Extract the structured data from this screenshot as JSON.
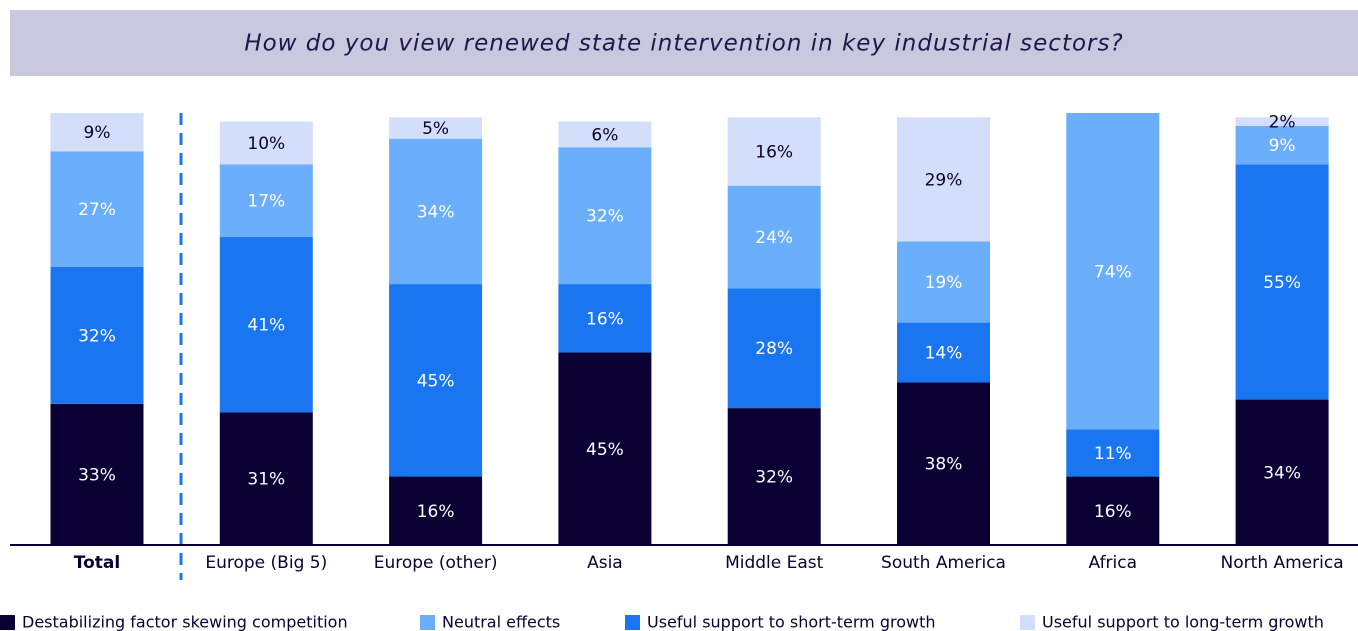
{
  "chart_data": {
    "type": "stacked_bar",
    "title": "How do you view renewed state intervention in key industrial sectors?",
    "categories": [
      "Total",
      "Europe (Big 5)",
      "Europe (other)",
      "Asia",
      "Middle East",
      "South America",
      "Africa",
      "North America"
    ],
    "series": [
      {
        "name": "Destabilizing factor skewing competition",
        "color": "#0b0033",
        "values": [
          33,
          31,
          16,
          45,
          32,
          38,
          16,
          34
        ],
        "value_labels": [
          "33%",
          "31%",
          "16%",
          "45%",
          "32%",
          "38%",
          "16%",
          "34%"
        ]
      },
      {
        "name": "Neutral effects",
        "color": "#6aaefc",
        "values": [
          27,
          17,
          34,
          32,
          24,
          19,
          74,
          9
        ],
        "value_labels": [
          "27%",
          "17%",
          "34%",
          "32%",
          "24%",
          "19%",
          "74%",
          "9%"
        ]
      },
      {
        "name": "Useful support to short-term growth",
        "color": "#1a75f0",
        "values": [
          32,
          41,
          45,
          16,
          28,
          14,
          11,
          55
        ],
        "value_labels": [
          "32%",
          "41%",
          "45%",
          "16%",
          "28%",
          "14%",
          "11%",
          "55%"
        ]
      },
      {
        "name": "Useful support to long-term growth",
        "color": "#d2defa",
        "values": [
          9,
          10,
          5,
          6,
          16,
          29,
          null,
          2
        ],
        "value_labels": [
          "9%",
          "10%",
          "5%",
          "6%",
          "16%",
          "29%",
          null,
          "2%"
        ]
      }
    ]
  }
}
